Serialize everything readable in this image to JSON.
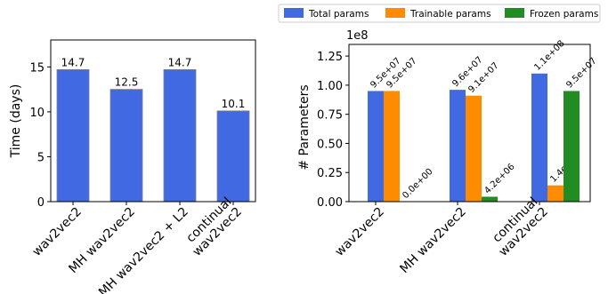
{
  "chart_data": [
    {
      "type": "bar",
      "ylabel": "Time (days)",
      "categories": [
        "wav2vec2",
        "MH wav2vec2",
        "MH wav2vec2 + L2",
        "continual wav2vec2"
      ],
      "category_labels": [
        [
          "wav2vec2"
        ],
        [
          "MH wav2vec2"
        ],
        [
          "MH wav2vec2 + L2"
        ],
        [
          "continual",
          "wav2vec2"
        ]
      ],
      "values": [
        14.7,
        12.5,
        14.7,
        10.1
      ],
      "value_labels": [
        "14.7",
        "12.5",
        "14.7",
        "10.1"
      ],
      "ylim": [
        0,
        18
      ],
      "yticks": [
        0,
        5,
        10,
        15
      ],
      "ytick_labels": [
        "0",
        "5",
        "10",
        "15"
      ],
      "color": "#4169e1",
      "grid": false
    },
    {
      "type": "bar",
      "ylabel": "# Parameters",
      "offset_text": "1e8",
      "categories": [
        "wav2vec2",
        "MH wav2vec2",
        "continual wav2vec2"
      ],
      "category_labels": [
        [
          "wav2vec2"
        ],
        [
          "MH wav2vec2"
        ],
        [
          "continual",
          "wav2vec2"
        ]
      ],
      "ylim": [
        0,
        1.35
      ],
      "yticks": [
        0,
        0.25,
        0.5,
        0.75,
        1.0,
        1.25
      ],
      "ytick_labels": [
        "0.00",
        "0.25",
        "0.50",
        "0.75",
        "1.00",
        "1.25"
      ],
      "legend_position": "top-right, outside plot",
      "grid": false,
      "series": [
        {
          "name": "Total params",
          "color": "#4169e1",
          "values": [
            0.95,
            0.96,
            1.1
          ],
          "value_labels": [
            "9.5e+07",
            "9.6e+07",
            "1.1e+08"
          ]
        },
        {
          "name": "Trainable params",
          "color": "#ff8c00",
          "values": [
            0.95,
            0.91,
            0.14
          ],
          "value_labels": [
            "9.5e+07",
            "9.1e+07",
            "1.4e+07"
          ]
        },
        {
          "name": "Frozen params",
          "color": "#228b22",
          "values": [
            0.0,
            0.042,
            0.95
          ],
          "value_labels": [
            "0.0e+00",
            "4.2e+06",
            "9.5e+07"
          ]
        }
      ]
    }
  ]
}
